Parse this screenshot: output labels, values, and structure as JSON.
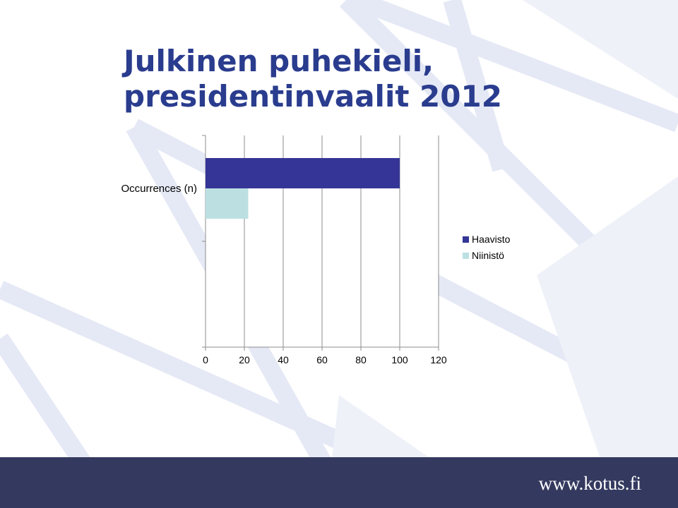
{
  "slide": {
    "title_line1": "Julkinen puhekieli,",
    "title_line2": "presidentinvaalit 2012",
    "footer_url": "www.kotus.fi"
  },
  "colors": {
    "title": "#2a3c8e",
    "footer_bg": "#34395f",
    "haavisto": "#353597",
    "niinisto": "#bce0e2"
  },
  "chart_data": {
    "type": "bar",
    "orientation": "horizontal",
    "categories": [
      "",
      "Occurrences (n)"
    ],
    "series": [
      {
        "name": "Haavisto",
        "values": [
          null,
          100
        ]
      },
      {
        "name": "Niinistö",
        "values": [
          null,
          22
        ]
      }
    ],
    "xlim": [
      0,
      120
    ],
    "xticks": [
      0,
      20,
      40,
      60,
      80,
      100,
      120
    ],
    "grid": true,
    "legend_position": "right"
  }
}
